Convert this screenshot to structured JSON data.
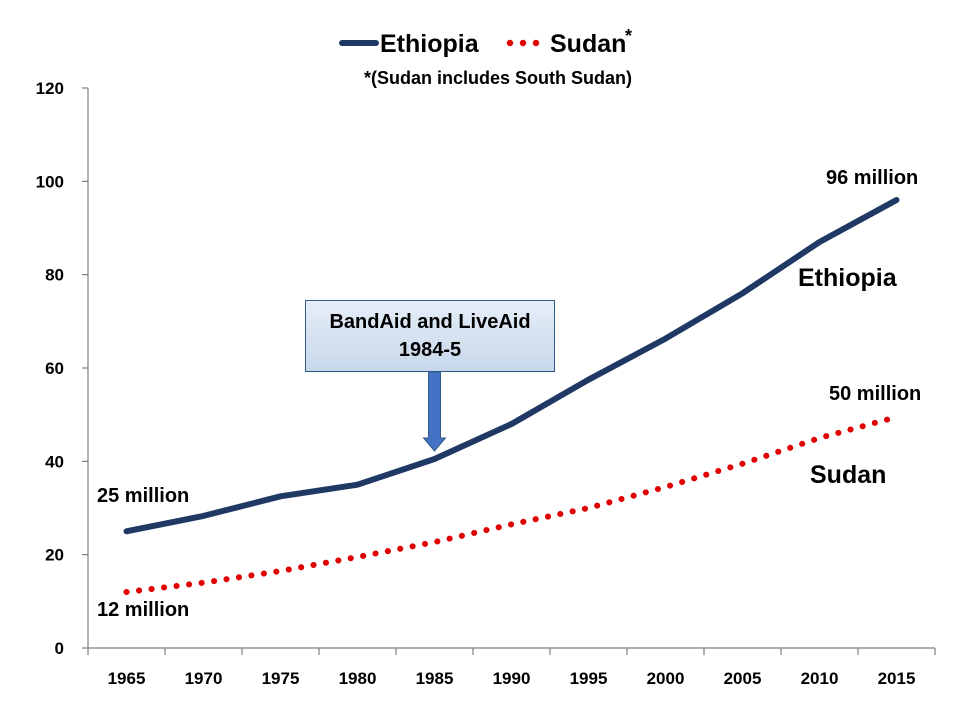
{
  "chart_data": {
    "type": "line",
    "legend": {
      "position": "top-center",
      "entries": [
        {
          "label": "Ethiopia",
          "color": "#1f3864",
          "style": "solid"
        },
        {
          "label": "Sudan",
          "marker": "*",
          "color": "#e00000",
          "style": "dotted"
        }
      ]
    },
    "note": "*(Sudan includes South Sudan)",
    "x": [
      1965,
      1970,
      1975,
      1980,
      1985,
      1990,
      1995,
      2000,
      2005,
      2010,
      2015
    ],
    "series": [
      {
        "name": "Ethiopia",
        "color": "#1f3864",
        "values": [
          25,
          28.3,
          32.5,
          35,
          40.5,
          48,
          57.5,
          66.3,
          76,
          87,
          96
        ]
      },
      {
        "name": "Sudan",
        "color": "#e00000",
        "values": [
          12,
          14,
          16.5,
          19.5,
          22.7,
          26.5,
          30,
          34.5,
          39.5,
          45,
          49.5
        ]
      }
    ],
    "ylim": [
      0,
      120
    ],
    "yticks": [
      0,
      20,
      40,
      60,
      80,
      100,
      120
    ],
    "grid": false,
    "xlabel": "",
    "ylabel": "",
    "annotations": {
      "ethiopia_start": "25 million",
      "ethiopia_end": "96 million",
      "sudan_start": "12 million",
      "sudan_end": "50 million",
      "ethiopia_series_label": "Ethiopia",
      "sudan_series_label": "Sudan",
      "callout_line1": "BandAid and LiveAid",
      "callout_line2": "1984-5",
      "callout_year": 1985,
      "callout_color": "#4472c4"
    }
  }
}
